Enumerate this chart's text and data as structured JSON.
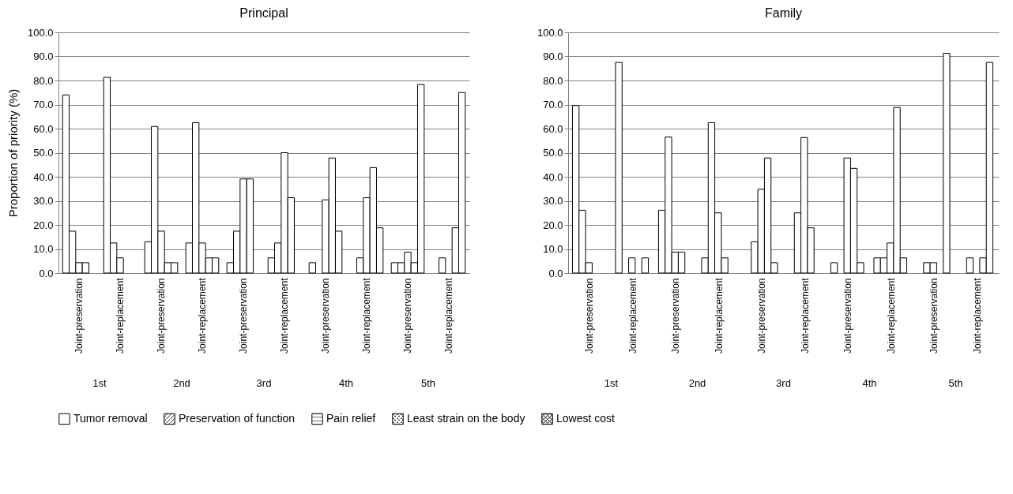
{
  "chart_data": [
    {
      "type": "bar",
      "title": "Principal",
      "ylabel": "Proportion of priority (%)",
      "categories": [
        "Joint-preservation",
        "Joint-replacement",
        "Joint-preservation",
        "Joint-replacement",
        "Joint-preservation",
        "Joint-replacement",
        "Joint-preservation",
        "Joint-replacement",
        "Joint-preservation",
        "Joint-replacement"
      ],
      "annotations": [
        "1st",
        "2nd",
        "3rd",
        "4th",
        "5th"
      ],
      "series": [
        {
          "name": "Tumor removal",
          "color": "#ffffff",
          "values": [
            74.0,
            81.3,
            13.0,
            12.5,
            4.3,
            6.3,
            4.3,
            0,
            4.3,
            0
          ]
        },
        {
          "name": "Preservation of function",
          "color": "#ffffff",
          "values": [
            17.4,
            12.5,
            60.9,
            62.5,
            17.4,
            12.5,
            0,
            6.3,
            4.3,
            6.3
          ]
        },
        {
          "name": "Pain relief",
          "color": "#ffffff",
          "values": [
            4.3,
            6.3,
            17.4,
            12.5,
            39.1,
            50.0,
            30.4,
            31.3,
            8.7,
            0
          ]
        },
        {
          "name": "Least strain on the body",
          "color": "#ffffff",
          "values": [
            4.3,
            0,
            4.3,
            6.3,
            39.1,
            31.3,
            47.8,
            43.8,
            4.3,
            18.8
          ]
        },
        {
          "name": "Lowest cost",
          "color": "#ffffff",
          "values": [
            0,
            0,
            4.3,
            6.3,
            0,
            0,
            17.4,
            18.8,
            78.3,
            75.0
          ]
        }
      ],
      "ylim": [
        0,
        100
      ],
      "yticks": [
        {
          "value": 0,
          "label": "0.0"
        },
        {
          "value": 10,
          "label": "10.0"
        },
        {
          "value": 20,
          "label": "20.0"
        },
        {
          "value": 30,
          "label": "30.0"
        },
        {
          "value": 40,
          "label": "40.0"
        },
        {
          "value": 50,
          "label": "50.0"
        },
        {
          "value": 60,
          "label": "60.0"
        },
        {
          "value": 70,
          "label": "70.0"
        },
        {
          "value": 80,
          "label": "80.0"
        },
        {
          "value": 90,
          "label": "90.0"
        },
        {
          "value": 100,
          "label": "100.0"
        }
      ],
      "grid": "y",
      "legend": "bottom"
    },
    {
      "type": "bar",
      "title": "Family",
      "categories": [
        "Joint-preservation",
        "Joint-replacement",
        "Joint-preservation",
        "Joint-replacement",
        "Joint-preservation",
        "Joint-replacement",
        "Joint-preservation",
        "Joint-replacement",
        "Joint-preservation",
        "Joint-replacement"
      ],
      "annotations": [
        "1st",
        "2nd",
        "3rd",
        "4th",
        "5th"
      ],
      "series": [
        {
          "color": "#ffffff",
          "values": [
            69.6,
            87.5,
            26.1,
            6.3,
            0,
            0,
            4.3,
            6.3,
            0,
            0
          ]
        },
        {
          "color": "#ffffff",
          "values": [
            26.1,
            0,
            56.5,
            62.5,
            13.0,
            25.0,
            0,
            6.3,
            4.3,
            6.3
          ]
        },
        {
          "color": "#ffffff",
          "values": [
            4.3,
            6.3,
            8.7,
            25.0,
            34.8,
            56.3,
            47.8,
            12.5,
            4.3,
            0
          ]
        },
        {
          "color": "#ffffff",
          "values": [
            0,
            0,
            8.7,
            6.3,
            47.8,
            18.8,
            43.5,
            68.8,
            0,
            6.3
          ]
        },
        {
          "color": "#ffffff",
          "values": [
            0,
            6.3,
            0,
            0,
            4.3,
            0,
            4.3,
            6.3,
            91.3,
            87.5
          ]
        }
      ],
      "ylim": [
        0,
        100
      ],
      "yticks": [
        {
          "value": 0,
          "label": "0.0"
        },
        {
          "value": 10,
          "label": "10.0"
        },
        {
          "value": 20,
          "label": "20.0"
        },
        {
          "value": 30,
          "label": "30.0"
        },
        {
          "value": 40,
          "label": "40.0"
        },
        {
          "value": 50,
          "label": "50.0"
        },
        {
          "value": 60,
          "label": "60.0"
        },
        {
          "value": 70,
          "label": "70.0"
        },
        {
          "value": 80,
          "label": "80.0"
        },
        {
          "value": 90,
          "label": "90.0"
        },
        {
          "value": 100,
          "label": "100.0"
        }
      ],
      "grid": "y"
    }
  ]
}
